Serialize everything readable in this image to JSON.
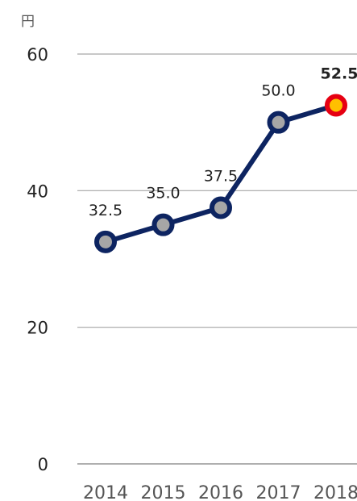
{
  "chart_data": {
    "type": "line",
    "unit_label": "円",
    "categories": [
      "2014",
      "2015",
      "2016",
      "2017",
      "2018"
    ],
    "values": [
      32.5,
      35.0,
      37.5,
      50.0,
      52.5
    ],
    "data_labels": [
      "32.5",
      "35.0",
      "37.5",
      "50.0",
      "52.5"
    ],
    "highlight_index": 4,
    "yticks": [
      0,
      20,
      40,
      60
    ],
    "ylim": [
      0,
      60
    ],
    "grid": true,
    "colors": {
      "line": "#0d2461",
      "marker_fill": "#a6a6a6",
      "highlight_fill": "#ffc000",
      "highlight_stroke": "#e60012",
      "grid": "#a6a6a6"
    }
  }
}
